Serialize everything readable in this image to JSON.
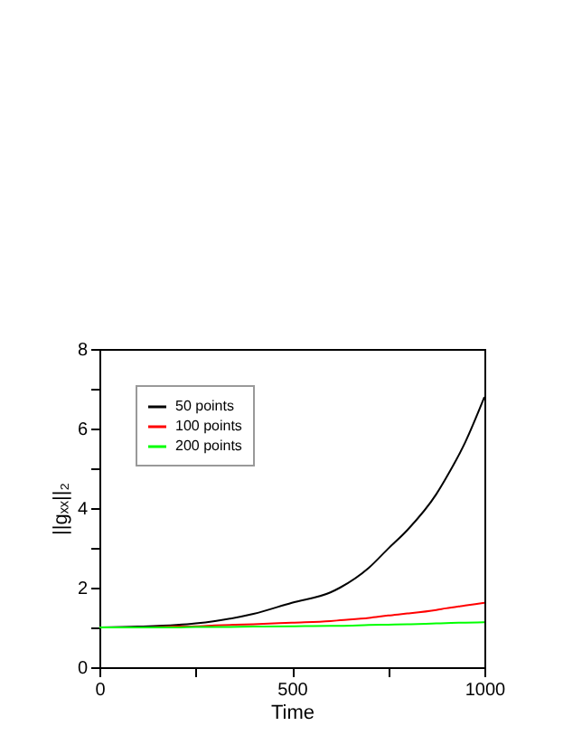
{
  "chart_data": {
    "type": "line",
    "xlabel": "Time",
    "ylabel": "||gₓₓ||₂",
    "x": [
      0,
      100,
      200,
      250,
      300,
      400,
      500,
      600,
      625,
      700,
      750,
      800,
      875,
      900,
      950,
      1000
    ],
    "series": [
      {
        "name": "50 points",
        "color": "#000000",
        "values": [
          1.0,
          1.02,
          1.06,
          1.1,
          1.16,
          1.34,
          1.62,
          1.88,
          2.0,
          2.5,
          2.98,
          3.45,
          4.35,
          4.75,
          5.65,
          6.79
        ]
      },
      {
        "name": "100 points",
        "color": "#ff0000",
        "values": [
          1.0,
          1.0,
          1.02,
          1.03,
          1.05,
          1.08,
          1.12,
          1.16,
          1.18,
          1.24,
          1.3,
          1.35,
          1.44,
          1.48,
          1.55,
          1.62
        ]
      },
      {
        "name": "200 points",
        "color": "#00ff00",
        "values": [
          1.0,
          1.0,
          1.0,
          1.01,
          1.01,
          1.02,
          1.03,
          1.04,
          1.04,
          1.06,
          1.07,
          1.08,
          1.1,
          1.11,
          1.12,
          1.13
        ]
      }
    ],
    "xlim": [
      0,
      1000
    ],
    "xticks": [
      0,
      {
        "value": 250,
        "label": null
      },
      500,
      {
        "value": 750,
        "label": null
      },
      1000
    ],
    "ylim": [
      0,
      8
    ],
    "yticks": [
      0,
      {
        "value": 1,
        "label": null
      },
      2,
      {
        "value": 3,
        "label": null
      },
      4,
      {
        "value": 5,
        "label": null
      },
      6,
      {
        "value": 7,
        "label": null
      },
      8
    ],
    "grid": false,
    "legend": "top left",
    "line_style": "solid",
    "marker": "none"
  }
}
